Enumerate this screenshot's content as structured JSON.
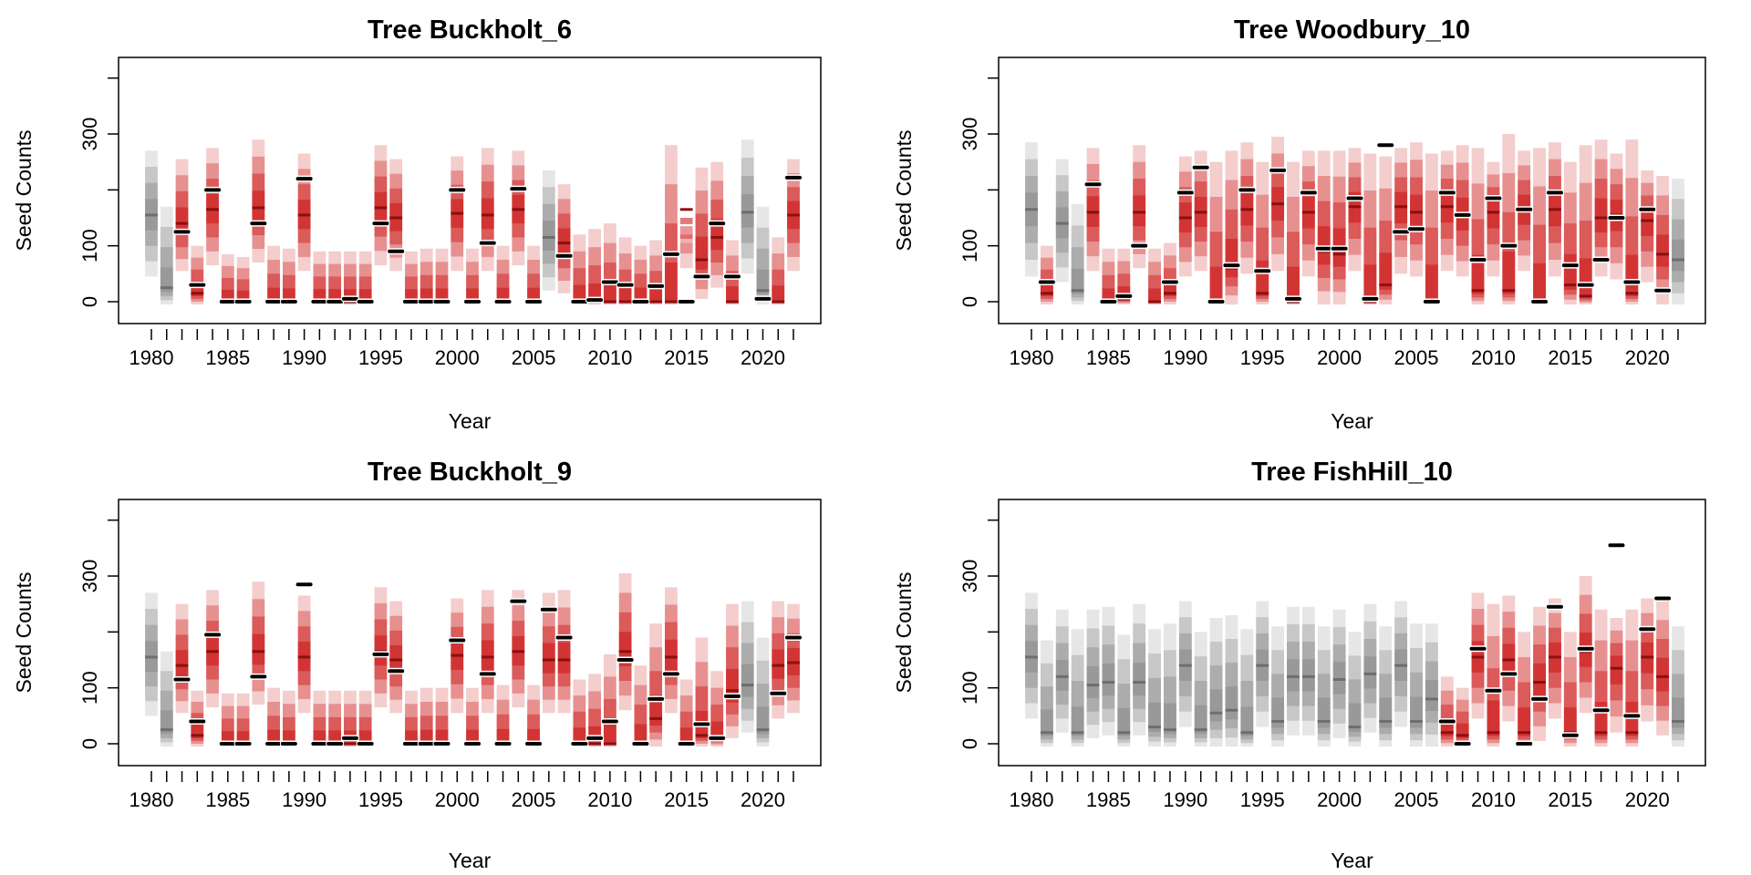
{
  "figure": {
    "colors": {
      "observed_band": "#cc1a1a",
      "unobserved_band": "#8c8c8c",
      "data_point": "#000000",
      "data_point_outline": "#ffffff"
    }
  },
  "chart_data": [
    {
      "type": "interval",
      "title": "Tree Buckholt_6",
      "xlabel": "Year",
      "ylabel": "Seed Counts",
      "x_ticks": [
        1980,
        1985,
        1990,
        1995,
        2000,
        2005,
        2010,
        2015,
        2020
      ],
      "y_ticks": [
        0,
        100,
        300
      ],
      "xlim": [
        1979,
        2023
      ],
      "ylim": [
        -40,
        440
      ],
      "years": [
        1980,
        1981,
        1982,
        1983,
        1984,
        1985,
        1986,
        1987,
        1988,
        1989,
        1990,
        1991,
        1992,
        1993,
        1994,
        1995,
        1996,
        1997,
        1998,
        1999,
        2000,
        2001,
        2002,
        2003,
        2004,
        2005,
        2006,
        2007,
        2008,
        2009,
        2010,
        2011,
        2012,
        2013,
        2014,
        2015,
        2016,
        2017,
        2018,
        2019,
        2020,
        2021,
        2022
      ],
      "observed": [
        0,
        0,
        1,
        1,
        1,
        1,
        1,
        1,
        1,
        1,
        1,
        1,
        1,
        1,
        1,
        1,
        1,
        1,
        1,
        1,
        1,
        1,
        1,
        1,
        1,
        1,
        0,
        1,
        1,
        1,
        1,
        1,
        1,
        1,
        1,
        1,
        1,
        1,
        1,
        0,
        0,
        1,
        1
      ],
      "median": [
        155,
        25,
        140,
        15,
        165,
        0,
        0,
        168,
        0,
        0,
        155,
        0,
        0,
        0,
        0,
        168,
        150,
        0,
        0,
        0,
        158,
        0,
        155,
        0,
        165,
        0,
        115,
        105,
        0,
        0,
        0,
        0,
        0,
        0,
        0,
        165,
        75,
        115,
        0,
        160,
        20,
        0,
        155
      ],
      "upper": [
        270,
        170,
        255,
        100,
        275,
        85,
        80,
        290,
        100,
        95,
        265,
        90,
        90,
        90,
        90,
        280,
        255,
        90,
        95,
        95,
        260,
        95,
        275,
        100,
        270,
        100,
        235,
        210,
        120,
        130,
        140,
        115,
        100,
        110,
        280,
        105,
        240,
        250,
        110,
        290,
        170,
        115,
        255
      ],
      "lower": [
        45,
        -5,
        55,
        -5,
        65,
        -5,
        -5,
        70,
        -5,
        -5,
        55,
        -5,
        -5,
        -5,
        -5,
        65,
        55,
        -5,
        -5,
        -5,
        55,
        -5,
        55,
        -5,
        65,
        -5,
        20,
        15,
        -5,
        -5,
        -5,
        -5,
        -5,
        -5,
        -5,
        60,
        5,
        25,
        -5,
        50,
        -5,
        -5,
        55
      ],
      "observed_counts": [
        null,
        null,
        125,
        30,
        200,
        0,
        0,
        140,
        0,
        0,
        220,
        0,
        0,
        5,
        0,
        140,
        90,
        0,
        0,
        0,
        200,
        0,
        105,
        0,
        202,
        0,
        null,
        82,
        0,
        3,
        35,
        30,
        0,
        28,
        85,
        0,
        45,
        140,
        45,
        null,
        5,
        null,
        222
      ]
    },
    {
      "type": "interval",
      "title": "Tree Woodbury_10",
      "xlabel": "Year",
      "ylabel": "Seed Counts",
      "x_ticks": [
        1980,
        1985,
        1990,
        1995,
        2000,
        2005,
        2010,
        2015,
        2020
      ],
      "y_ticks": [
        0,
        100,
        300
      ],
      "xlim": [
        1979,
        2023
      ],
      "ylim": [
        -40,
        440
      ],
      "years": [
        1980,
        1981,
        1982,
        1983,
        1984,
        1985,
        1986,
        1987,
        1988,
        1989,
        1990,
        1991,
        1992,
        1993,
        1994,
        1995,
        1996,
        1997,
        1998,
        1999,
        2000,
        2001,
        2002,
        2003,
        2004,
        2005,
        2006,
        2007,
        2008,
        2009,
        2010,
        2011,
        2012,
        2013,
        2014,
        2015,
        2016,
        2017,
        2018,
        2019,
        2020,
        2021,
        2022
      ],
      "observed": [
        0,
        1,
        0,
        0,
        1,
        1,
        1,
        1,
        1,
        1,
        1,
        1,
        1,
        1,
        1,
        1,
        1,
        1,
        1,
        1,
        1,
        1,
        1,
        1,
        1,
        1,
        1,
        1,
        1,
        1,
        1,
        1,
        1,
        1,
        1,
        1,
        1,
        1,
        1,
        1,
        1,
        1,
        0
      ],
      "median": [
        165,
        15,
        140,
        20,
        160,
        0,
        5,
        160,
        0,
        15,
        150,
        160,
        0,
        60,
        165,
        15,
        175,
        0,
        160,
        90,
        85,
        170,
        0,
        30,
        170,
        160,
        0,
        170,
        155,
        20,
        160,
        20,
        165,
        0,
        165,
        30,
        10,
        150,
        155,
        15,
        145,
        85,
        75
      ],
      "upper": [
        285,
        100,
        255,
        175,
        275,
        95,
        95,
        280,
        95,
        105,
        260,
        270,
        250,
        270,
        285,
        250,
        295,
        250,
        270,
        270,
        270,
        275,
        265,
        260,
        275,
        285,
        265,
        270,
        280,
        275,
        250,
        300,
        270,
        275,
        285,
        250,
        280,
        290,
        265,
        290,
        235,
        225,
        220
      ],
      "lower": [
        45,
        -5,
        35,
        -5,
        55,
        -5,
        -5,
        60,
        -5,
        -5,
        45,
        55,
        -5,
        -5,
        50,
        -5,
        55,
        -5,
        45,
        -5,
        -5,
        55,
        -5,
        -5,
        50,
        45,
        -5,
        55,
        45,
        -5,
        45,
        -5,
        55,
        -5,
        45,
        -5,
        -5,
        45,
        40,
        -5,
        35,
        -5,
        -5
      ],
      "observed_counts": [
        null,
        35,
        null,
        null,
        210,
        0,
        10,
        100,
        null,
        35,
        195,
        240,
        0,
        65,
        200,
        55,
        235,
        5,
        195,
        95,
        95,
        185,
        5,
        280,
        125,
        130,
        0,
        195,
        155,
        75,
        185,
        100,
        165,
        0,
        195,
        65,
        30,
        75,
        150,
        35,
        165,
        20,
        null
      ]
    },
    {
      "type": "interval",
      "title": "Tree Buckholt_9",
      "xlabel": "Year",
      "ylabel": "Seed Counts",
      "x_ticks": [
        1980,
        1985,
        1990,
        1995,
        2000,
        2005,
        2010,
        2015,
        2020
      ],
      "y_ticks": [
        0,
        100,
        300
      ],
      "xlim": [
        1979,
        2023
      ],
      "ylim": [
        -40,
        440
      ],
      "years": [
        1980,
        1981,
        1982,
        1983,
        1984,
        1985,
        1986,
        1987,
        1988,
        1989,
        1990,
        1991,
        1992,
        1993,
        1994,
        1995,
        1996,
        1997,
        1998,
        1999,
        2000,
        2001,
        2002,
        2003,
        2004,
        2005,
        2006,
        2007,
        2008,
        2009,
        2010,
        2011,
        2012,
        2013,
        2014,
        2015,
        2016,
        2017,
        2018,
        2019,
        2020,
        2021,
        2022
      ],
      "observed": [
        0,
        0,
        1,
        1,
        1,
        1,
        1,
        1,
        1,
        1,
        1,
        1,
        1,
        1,
        1,
        1,
        1,
        1,
        1,
        1,
        1,
        1,
        1,
        1,
        1,
        1,
        1,
        1,
        1,
        1,
        1,
        1,
        1,
        1,
        1,
        1,
        1,
        1,
        1,
        0,
        0,
        1,
        1
      ],
      "median": [
        155,
        25,
        140,
        15,
        165,
        0,
        0,
        165,
        0,
        0,
        155,
        0,
        0,
        0,
        0,
        165,
        150,
        0,
        0,
        0,
        158,
        0,
        155,
        0,
        165,
        0,
        150,
        150,
        0,
        0,
        0,
        165,
        0,
        45,
        155,
        0,
        15,
        10,
        95,
        105,
        25,
        140,
        145
      ],
      "upper": [
        270,
        165,
        250,
        95,
        275,
        90,
        90,
        290,
        100,
        95,
        265,
        95,
        95,
        95,
        95,
        280,
        255,
        95,
        100,
        100,
        260,
        100,
        275,
        105,
        275,
        105,
        270,
        275,
        115,
        125,
        160,
        305,
        140,
        215,
        280,
        115,
        190,
        130,
        250,
        255,
        190,
        255,
        250
      ],
      "lower": [
        50,
        -5,
        55,
        -5,
        65,
        -5,
        -5,
        70,
        -5,
        -5,
        55,
        -5,
        -5,
        -5,
        -5,
        65,
        55,
        -5,
        -5,
        -5,
        55,
        -5,
        55,
        -5,
        65,
        -5,
        55,
        55,
        -5,
        -5,
        -5,
        60,
        -5,
        -5,
        55,
        -5,
        -5,
        -5,
        10,
        20,
        -5,
        45,
        55
      ],
      "observed_counts": [
        null,
        null,
        115,
        40,
        195,
        0,
        0,
        120,
        0,
        0,
        285,
        0,
        0,
        10,
        0,
        160,
        130,
        0,
        0,
        0,
        185,
        0,
        125,
        0,
        255,
        0,
        240,
        190,
        0,
        10,
        40,
        150,
        0,
        80,
        125,
        0,
        35,
        10,
        85,
        null,
        null,
        90,
        190
      ]
    },
    {
      "type": "interval",
      "title": "Tree FishHill_10",
      "xlabel": "Year",
      "ylabel": "Seed Counts",
      "x_ticks": [
        1980,
        1985,
        1990,
        1995,
        2000,
        2005,
        2010,
        2015,
        2020
      ],
      "y_ticks": [
        0,
        100,
        300
      ],
      "xlim": [
        1979,
        2023
      ],
      "ylim": [
        -40,
        440
      ],
      "years": [
        1980,
        1981,
        1982,
        1983,
        1984,
        1985,
        1986,
        1987,
        1988,
        1989,
        1990,
        1991,
        1992,
        1993,
        1994,
        1995,
        1996,
        1997,
        1998,
        1999,
        2000,
        2001,
        2002,
        2003,
        2004,
        2005,
        2006,
        2007,
        2008,
        2009,
        2010,
        2011,
        2012,
        2013,
        2014,
        2015,
        2016,
        2017,
        2018,
        2019,
        2020,
        2021,
        2022
      ],
      "observed": [
        0,
        0,
        0,
        0,
        0,
        0,
        0,
        0,
        0,
        0,
        0,
        0,
        0,
        0,
        0,
        0,
        0,
        0,
        0,
        0,
        0,
        0,
        0,
        0,
        0,
        0,
        0,
        1,
        1,
        1,
        1,
        1,
        1,
        1,
        1,
        1,
        1,
        1,
        1,
        1,
        1,
        1,
        0
      ],
      "median": [
        155,
        20,
        120,
        20,
        105,
        110,
        20,
        110,
        30,
        25,
        140,
        25,
        55,
        60,
        20,
        140,
        40,
        120,
        120,
        40,
        115,
        30,
        125,
        40,
        140,
        40,
        80,
        20,
        15,
        155,
        20,
        150,
        20,
        110,
        155,
        20,
        165,
        20,
        135,
        20,
        155,
        120,
        40
      ],
      "upper": [
        270,
        185,
        240,
        205,
        240,
        245,
        195,
        250,
        205,
        215,
        255,
        200,
        225,
        230,
        205,
        255,
        210,
        245,
        245,
        210,
        240,
        200,
        250,
        210,
        255,
        215,
        215,
        120,
        100,
        270,
        250,
        265,
        200,
        245,
        260,
        200,
        300,
        240,
        225,
        240,
        260,
        255,
        210
      ],
      "lower": [
        45,
        -5,
        20,
        -5,
        10,
        15,
        -5,
        15,
        -5,
        -5,
        30,
        -5,
        -5,
        -5,
        -5,
        30,
        -5,
        15,
        15,
        -5,
        10,
        -5,
        20,
        -5,
        30,
        -5,
        -5,
        -5,
        -5,
        45,
        -5,
        40,
        -5,
        5,
        45,
        -5,
        55,
        -5,
        20,
        -5,
        40,
        15,
        -5
      ],
      "observed_counts": [
        null,
        null,
        null,
        null,
        null,
        null,
        null,
        null,
        null,
        null,
        null,
        null,
        null,
        null,
        null,
        null,
        null,
        null,
        null,
        null,
        null,
        null,
        null,
        null,
        null,
        null,
        null,
        40,
        0,
        170,
        95,
        125,
        0,
        80,
        245,
        15,
        170,
        60,
        355,
        50,
        205,
        260,
        null
      ]
    }
  ]
}
